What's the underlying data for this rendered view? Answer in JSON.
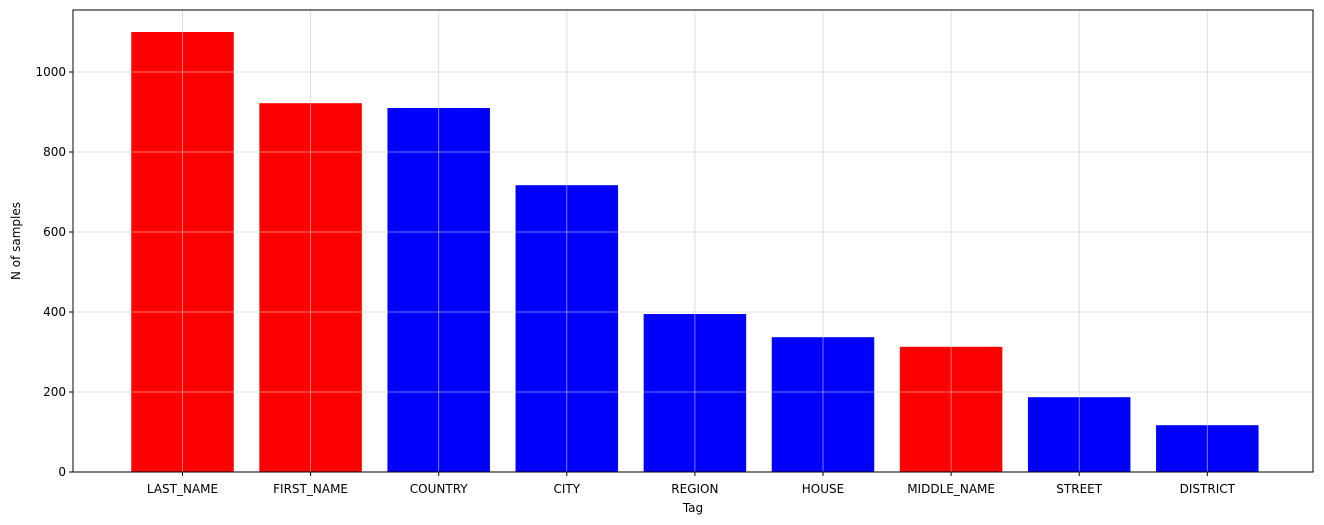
{
  "chart_data": {
    "type": "bar",
    "title": "",
    "xlabel": "Tag",
    "ylabel": "N of samples",
    "categories": [
      "LAST_NAME",
      "FIRST_NAME",
      "COUNTRY",
      "CITY",
      "REGION",
      "HOUSE",
      "MIDDLE_NAME",
      "STREET",
      "DISTRICT"
    ],
    "values": [
      1100,
      922,
      910,
      717,
      395,
      337,
      313,
      187,
      117
    ],
    "bar_colors": [
      "#ff0000",
      "#ff0000",
      "#0000ff",
      "#0000ff",
      "#0000ff",
      "#0000ff",
      "#ff0000",
      "#0000ff",
      "#0000ff"
    ],
    "ylim": [
      0,
      1155
    ],
    "yticks": [
      0,
      200,
      400,
      600,
      800,
      1000
    ],
    "grid": true,
    "legend": "none"
  }
}
